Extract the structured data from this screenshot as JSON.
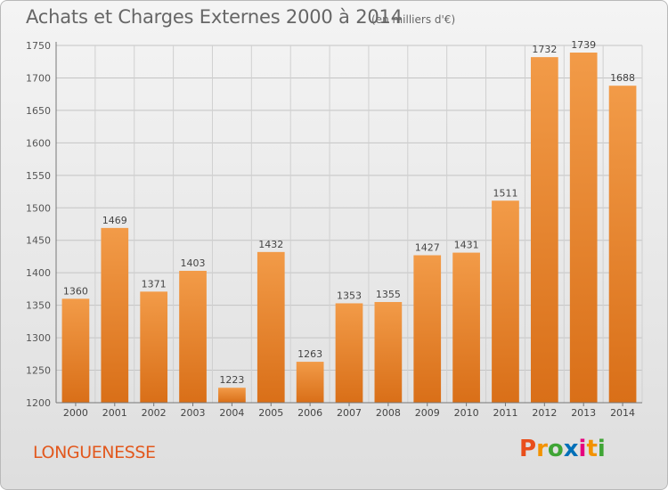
{
  "header": {
    "title": "Achats et Charges Externes 2000 à 2014",
    "subtitle": "(en milliers d'€)"
  },
  "footer": {
    "commune": "LONGUENESSE",
    "brand": {
      "letters": [
        "P",
        "r",
        "o",
        "x",
        "i",
        "t",
        "i"
      ],
      "colors": [
        "#e94e1b",
        "#f39200",
        "#3fa535",
        "#0070b8",
        "#e6007e",
        "#f39200",
        "#3fa535"
      ]
    }
  },
  "chart_data": {
    "type": "bar",
    "categories": [
      "2000",
      "2001",
      "2002",
      "2003",
      "2004",
      "2005",
      "2006",
      "2007",
      "2008",
      "2009",
      "2010",
      "2011",
      "2012",
      "2013",
      "2014"
    ],
    "values": [
      1360,
      1469,
      1371,
      1403,
      1223,
      1432,
      1263,
      1353,
      1355,
      1427,
      1431,
      1511,
      1732,
      1739,
      1688
    ],
    "ylim": [
      1200,
      1750
    ],
    "yticks": [
      1200,
      1250,
      1300,
      1350,
      1400,
      1450,
      1500,
      1550,
      1600,
      1650,
      1700,
      1750
    ],
    "grid": true,
    "bar_color": "#f29b48",
    "bar_color_dark": "#d96f18"
  }
}
